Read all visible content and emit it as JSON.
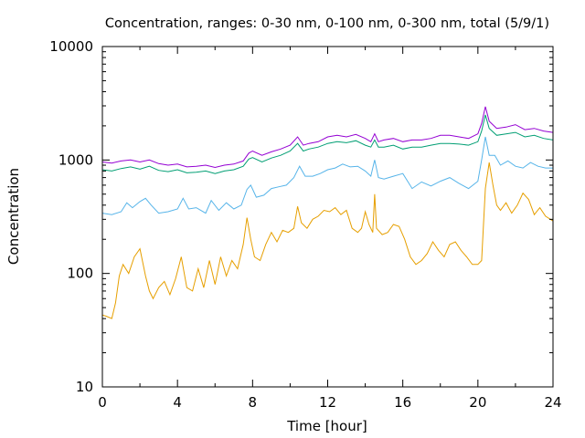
{
  "chart_data": {
    "type": "line",
    "title": "Concentration, ranges: 0-30 nm, 0-100 nm, 0-300 nm, total (5/9/1)",
    "xlabel": "Time [hour]",
    "ylabel": "Concentration",
    "xlim": [
      0,
      24
    ],
    "ylim": [
      10,
      10000
    ],
    "yscale": "log",
    "grid": false,
    "legend": "none",
    "x_ticks": [
      "0",
      "4",
      "8",
      "12",
      "16",
      "20",
      "24"
    ],
    "y_ticks": [
      "10",
      "100",
      "1000",
      "10000"
    ],
    "series": [
      {
        "color": "#e69f00",
        "x": [
          0,
          0.2,
          0.5,
          0.7,
          0.9,
          1.1,
          1.4,
          1.7,
          2.0,
          2.3,
          2.5,
          2.7,
          3.0,
          3.3,
          3.6,
          3.9,
          4.2,
          4.5,
          4.8,
          5.1,
          5.4,
          5.7,
          6.0,
          6.3,
          6.6,
          6.9,
          7.2,
          7.5,
          7.7,
          7.9,
          8.1,
          8.4,
          8.7,
          9.0,
          9.3,
          9.6,
          9.9,
          10.2,
          10.4,
          10.6,
          10.9,
          11.2,
          11.5,
          11.8,
          12.1,
          12.4,
          12.7,
          13.0,
          13.3,
          13.6,
          13.8,
          14.0,
          14.2,
          14.4,
          14.5,
          14.6,
          14.9,
          15.2,
          15.5,
          15.8,
          16.1,
          16.4,
          16.7,
          17.0,
          17.3,
          17.6,
          17.9,
          18.2,
          18.5,
          18.8,
          19.1,
          19.4,
          19.7,
          20.0,
          20.2,
          20.4,
          20.6,
          20.8,
          21.0,
          21.2,
          21.5,
          21.8,
          22.1,
          22.4,
          22.7,
          23.0,
          23.3,
          23.6,
          24.0
        ],
        "values": [
          43,
          42,
          40,
          55,
          95,
          120,
          100,
          140,
          165,
          95,
          70,
          60,
          75,
          85,
          65,
          90,
          140,
          75,
          70,
          110,
          75,
          130,
          80,
          140,
          95,
          130,
          110,
          180,
          310,
          200,
          140,
          130,
          180,
          230,
          190,
          240,
          230,
          250,
          390,
          280,
          250,
          300,
          320,
          360,
          350,
          380,
          330,
          360,
          250,
          230,
          250,
          350,
          270,
          230,
          500,
          250,
          220,
          230,
          270,
          260,
          200,
          140,
          120,
          130,
          150,
          190,
          160,
          140,
          180,
          190,
          160,
          140,
          120,
          120,
          130,
          560,
          950,
          600,
          400,
          360,
          420,
          340,
          400,
          510,
          450,
          330,
          380,
          320,
          290
        ]
      },
      {
        "color": "#56b4e9",
        "x": [
          0,
          0.5,
          1.0,
          1.3,
          1.6,
          2.0,
          2.3,
          2.6,
          3.0,
          3.5,
          4.0,
          4.3,
          4.6,
          5.0,
          5.5,
          5.8,
          6.2,
          6.6,
          7.0,
          7.4,
          7.7,
          7.9,
          8.2,
          8.6,
          9.0,
          9.4,
          9.8,
          10.2,
          10.5,
          10.8,
          11.2,
          11.6,
          12.0,
          12.4,
          12.8,
          13.2,
          13.6,
          14.0,
          14.3,
          14.5,
          14.7,
          15.0,
          15.5,
          16.0,
          16.5,
          17.0,
          17.5,
          18.0,
          18.5,
          19.0,
          19.5,
          20.0,
          20.2,
          20.4,
          20.6,
          20.9,
          21.2,
          21.6,
          22.0,
          22.4,
          22.8,
          23.2,
          23.6,
          24.0
        ],
        "values": [
          340,
          330,
          350,
          420,
          380,
          430,
          460,
          400,
          340,
          350,
          370,
          460,
          370,
          380,
          340,
          440,
          360,
          420,
          370,
          400,
          550,
          600,
          470,
          490,
          560,
          580,
          600,
          700,
          880,
          720,
          720,
          760,
          820,
          850,
          920,
          870,
          880,
          800,
          720,
          1000,
          700,
          680,
          720,
          760,
          560,
          640,
          590,
          650,
          700,
          620,
          560,
          650,
          1000,
          1600,
          1100,
          1100,
          900,
          980,
          880,
          850,
          950,
          880,
          850,
          850
        ]
      },
      {
        "color": "#009e73",
        "x": [
          0,
          0.5,
          1.0,
          1.5,
          2.0,
          2.5,
          3.0,
          3.5,
          4.0,
          4.5,
          5.0,
          5.5,
          6.0,
          6.5,
          7.0,
          7.5,
          7.8,
          8.0,
          8.5,
          9.0,
          9.5,
          10.0,
          10.4,
          10.7,
          11.0,
          11.5,
          12.0,
          12.5,
          13.0,
          13.5,
          14.0,
          14.3,
          14.5,
          14.7,
          15.0,
          15.5,
          16.0,
          16.5,
          17.0,
          17.5,
          18.0,
          18.5,
          19.0,
          19.5,
          20.0,
          20.2,
          20.4,
          20.6,
          21.0,
          21.5,
          22.0,
          22.5,
          23.0,
          23.5,
          24.0
        ],
        "values": [
          820,
          800,
          840,
          870,
          830,
          880,
          810,
          790,
          820,
          770,
          780,
          800,
          760,
          800,
          820,
          880,
          1020,
          1050,
          960,
          1040,
          1100,
          1200,
          1400,
          1200,
          1250,
          1300,
          1400,
          1450,
          1420,
          1480,
          1350,
          1300,
          1500,
          1300,
          1300,
          1350,
          1250,
          1300,
          1300,
          1350,
          1400,
          1400,
          1380,
          1350,
          1450,
          1800,
          2500,
          1900,
          1650,
          1700,
          1750,
          1600,
          1650,
          1550,
          1500
        ]
      },
      {
        "color": "#9400d3",
        "x": [
          0,
          0.5,
          1.0,
          1.5,
          2.0,
          2.5,
          3.0,
          3.5,
          4.0,
          4.5,
          5.0,
          5.5,
          6.0,
          6.5,
          7.0,
          7.5,
          7.8,
          8.0,
          8.5,
          9.0,
          9.5,
          10.0,
          10.4,
          10.7,
          11.0,
          11.5,
          12.0,
          12.5,
          13.0,
          13.5,
          14.0,
          14.3,
          14.5,
          14.7,
          15.0,
          15.5,
          16.0,
          16.5,
          17.0,
          17.5,
          18.0,
          18.5,
          19.0,
          19.5,
          20.0,
          20.2,
          20.4,
          20.6,
          21.0,
          21.5,
          22.0,
          22.5,
          23.0,
          23.5,
          24.0
        ],
        "values": [
          960,
          940,
          980,
          1000,
          960,
          1000,
          930,
          900,
          920,
          870,
          880,
          900,
          860,
          900,
          920,
          980,
          1150,
          1200,
          1100,
          1180,
          1250,
          1350,
          1600,
          1350,
          1400,
          1450,
          1600,
          1650,
          1600,
          1680,
          1550,
          1450,
          1700,
          1450,
          1500,
          1550,
          1450,
          1500,
          1500,
          1550,
          1650,
          1650,
          1600,
          1550,
          1700,
          2100,
          2950,
          2200,
          1900,
          1950,
          2050,
          1850,
          1900,
          1800,
          1750
        ]
      }
    ]
  }
}
